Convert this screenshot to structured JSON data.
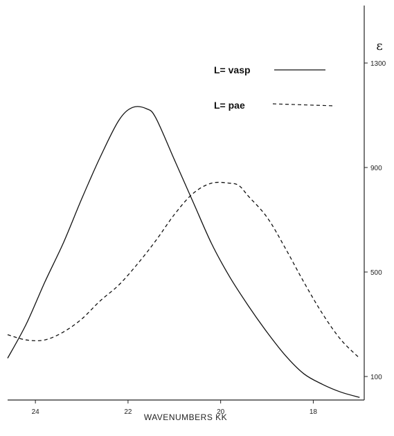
{
  "chart_data": {
    "type": "line",
    "title": "",
    "xlabel": "WAVENUMBERS   KK",
    "ylabel": "ε",
    "xlim": [
      24.6,
      16.9
    ],
    "ylim": [
      10,
      1520
    ],
    "x_ticks": [
      24,
      22,
      20,
      18
    ],
    "x_tick_labels": [
      "24",
      "22",
      "20",
      "18"
    ],
    "y_ticks": [
      100,
      500,
      900,
      1300
    ],
    "y_tick_labels": [
      "100",
      "500",
      "900",
      "1300"
    ],
    "grid": false,
    "legend_position": "top-right",
    "series": [
      {
        "name": "L= vasp",
        "style": "solid",
        "color": "#111111",
        "x": [
          24.6,
          24.2,
          23.8,
          23.4,
          23.0,
          22.6,
          22.2,
          21.9,
          21.6,
          21.4,
          21.0,
          20.6,
          20.2,
          19.8,
          19.4,
          19.0,
          18.6,
          18.2,
          17.8,
          17.4,
          17.0
        ],
        "y": [
          170,
          300,
          460,
          610,
          780,
          940,
          1080,
          1130,
          1125,
          1090,
          930,
          770,
          610,
          480,
          370,
          270,
          180,
          110,
          70,
          40,
          20
        ]
      },
      {
        "name": "L= pae",
        "style": "dashed",
        "color": "#111111",
        "x": [
          24.6,
          24.2,
          23.8,
          23.4,
          23.0,
          22.6,
          22.2,
          21.8,
          21.4,
          21.0,
          20.6,
          20.2,
          19.8,
          19.6,
          19.4,
          19.0,
          18.6,
          18.2,
          17.8,
          17.4,
          17.0
        ],
        "y": [
          260,
          240,
          240,
          270,
          320,
          390,
          450,
          530,
          620,
          720,
          800,
          840,
          840,
          830,
          790,
          710,
          590,
          460,
          340,
          240,
          170
        ]
      }
    ]
  }
}
